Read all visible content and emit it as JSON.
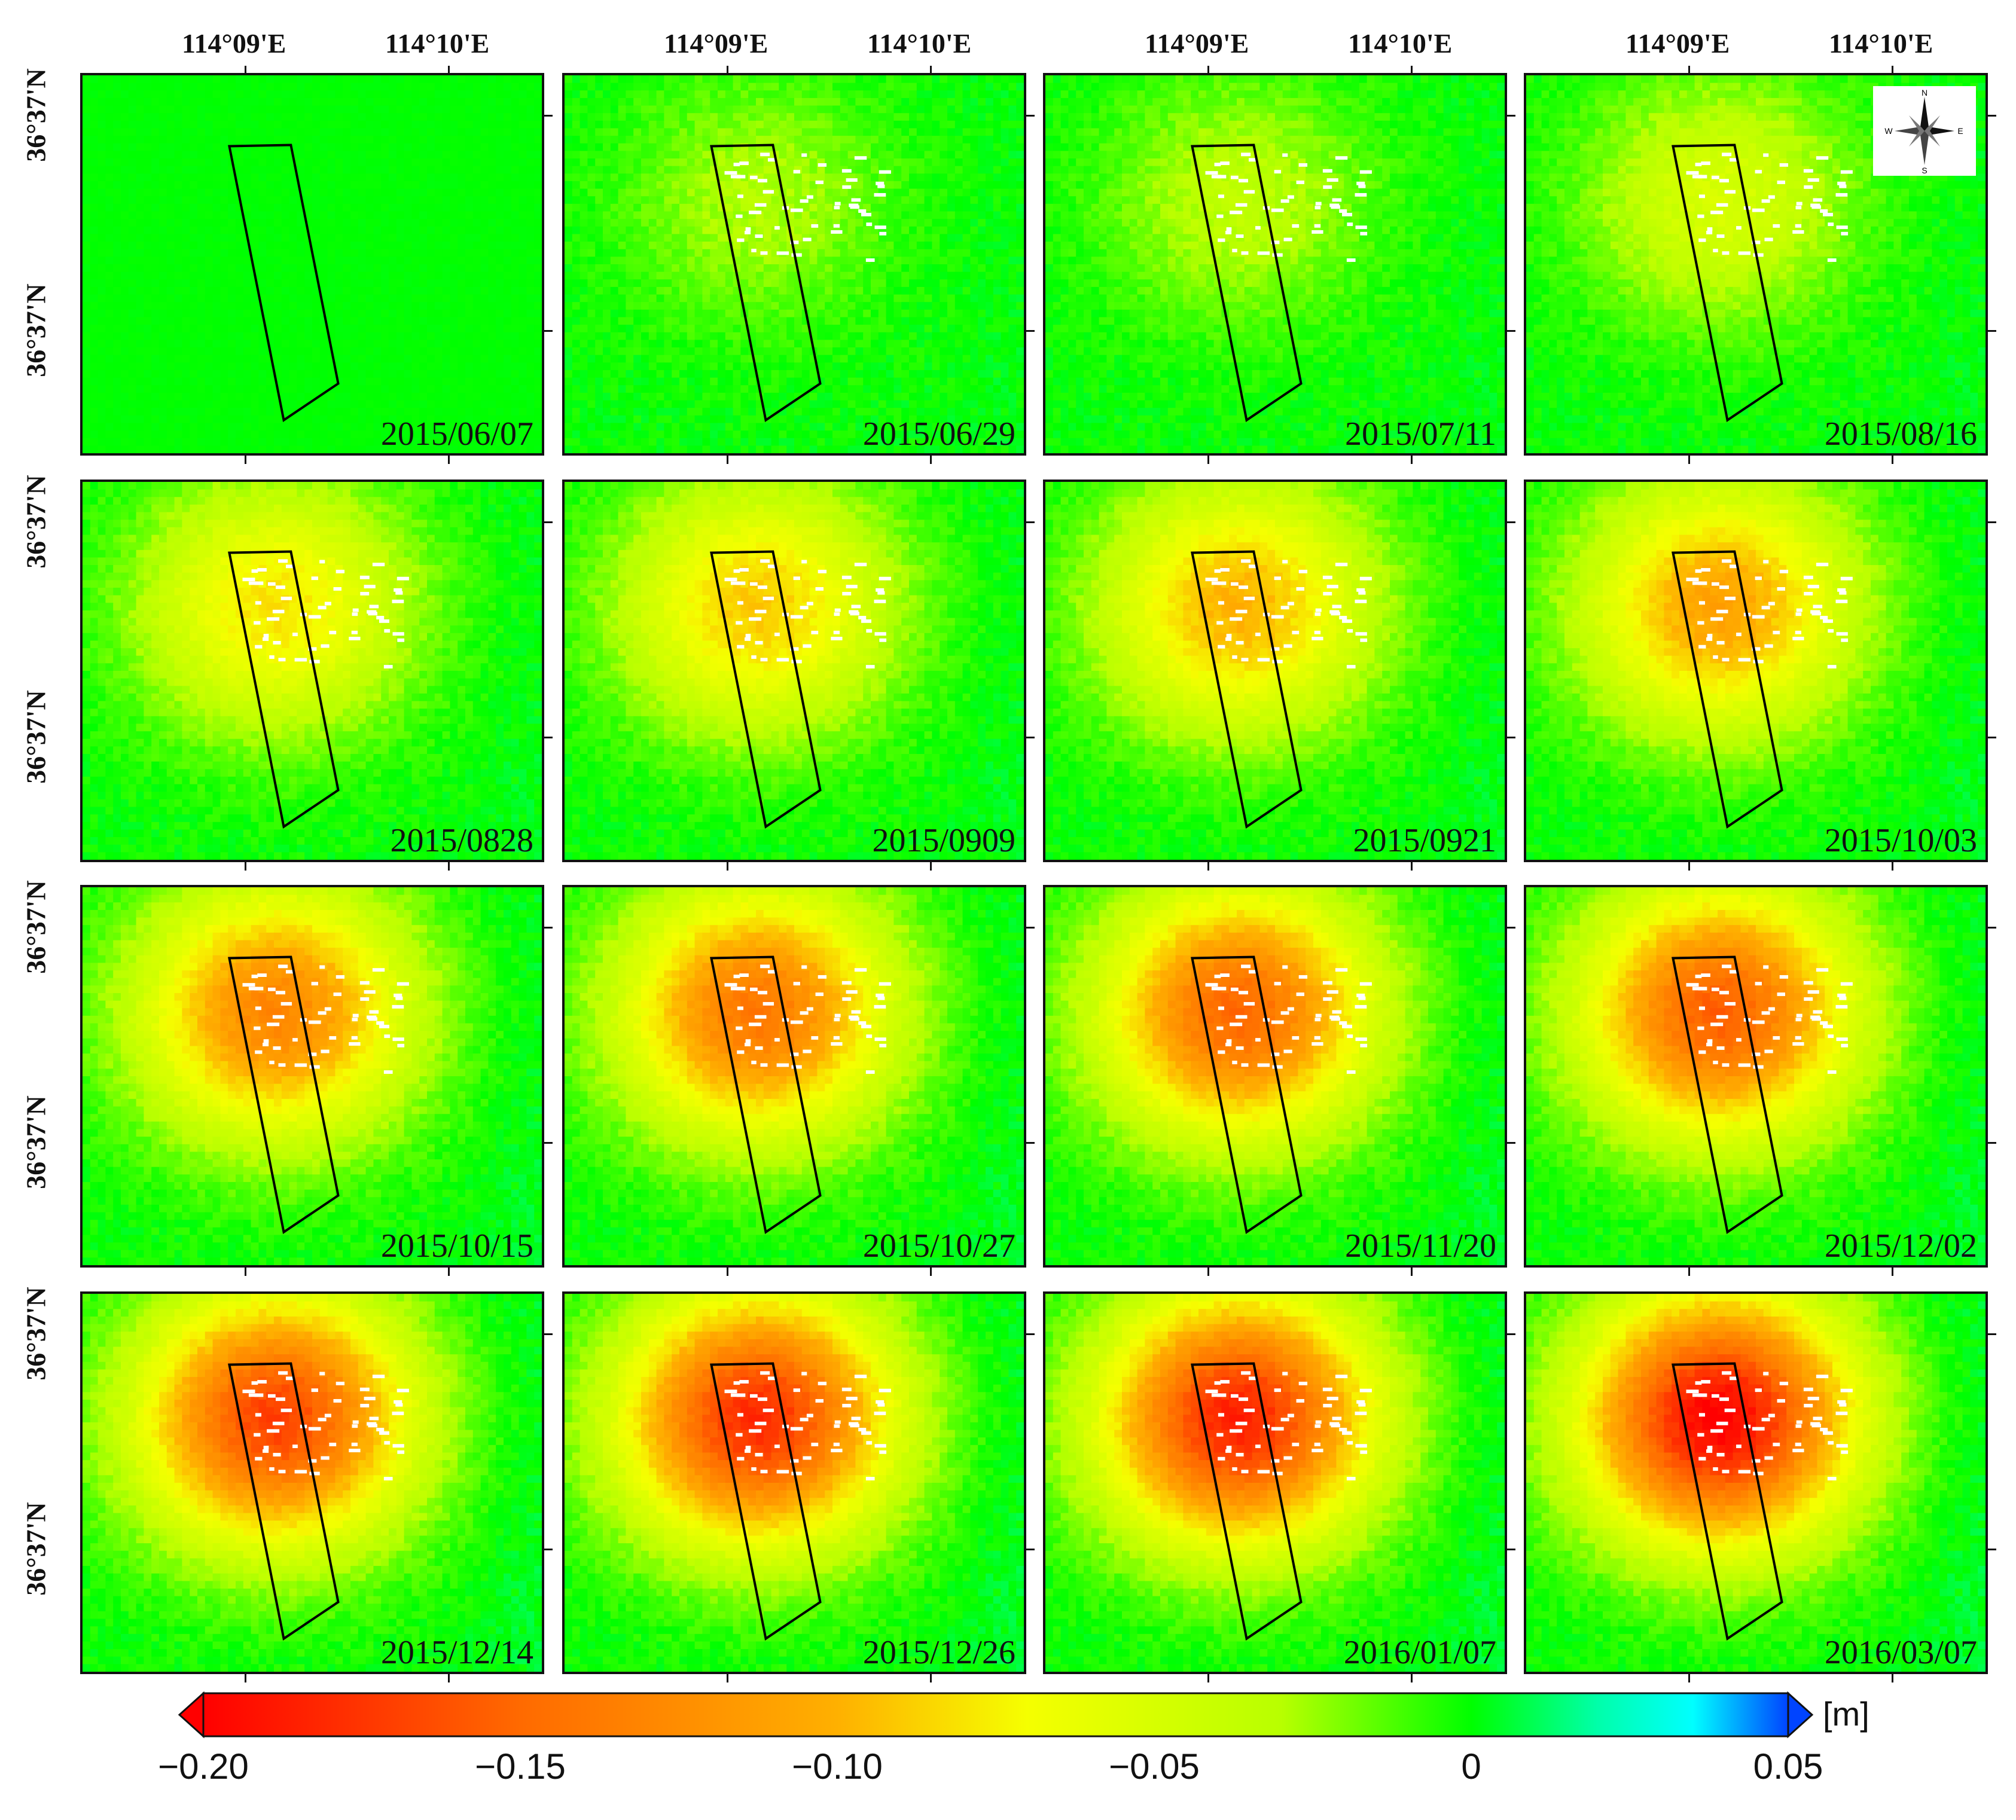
{
  "figure": {
    "lon_labels": [
      "114°09'E",
      "114°10'E"
    ],
    "lat_labels": [
      "36°37'N",
      "36°37'N"
    ],
    "panels": [
      {
        "date": "2015/06/07",
        "max_subsidence_m": 0.0
      },
      {
        "date": "2015/06/29",
        "max_subsidence_m": -0.03
      },
      {
        "date": "2015/07/11",
        "max_subsidence_m": -0.035
      },
      {
        "date": "2015/08/16",
        "max_subsidence_m": -0.05
      },
      {
        "date": "2015/0828",
        "max_subsidence_m": -0.08
      },
      {
        "date": "2015/0909",
        "max_subsidence_m": -0.09
      },
      {
        "date": "2015/0921",
        "max_subsidence_m": -0.1
      },
      {
        "date": "2015/10/03",
        "max_subsidence_m": -0.11
      },
      {
        "date": "2015/10/15",
        "max_subsidence_m": -0.13
      },
      {
        "date": "2015/10/27",
        "max_subsidence_m": -0.14
      },
      {
        "date": "2015/11/20",
        "max_subsidence_m": -0.15
      },
      {
        "date": "2015/12/02",
        "max_subsidence_m": -0.155
      },
      {
        "date": "2015/12/14",
        "max_subsidence_m": -0.17
      },
      {
        "date": "2015/12/26",
        "max_subsidence_m": -0.18
      },
      {
        "date": "2016/01/07",
        "max_subsidence_m": -0.185
      },
      {
        "date": "2016/03/07",
        "max_subsidence_m": -0.2
      }
    ],
    "compass": {
      "icon": "compass-rose-icon",
      "n": "N",
      "s": "S",
      "e": "E",
      "w": "W"
    },
    "colorbar": {
      "min": -0.2,
      "max": 0.05,
      "ticks": [
        "−0.20",
        "−0.15",
        "−0.10",
        "−0.05",
        "0",
        "0.05"
      ],
      "tick_values": [
        -0.2,
        -0.15,
        -0.1,
        -0.05,
        0,
        0.05
      ],
      "unit": "[m]",
      "stops": [
        {
          "v": -0.2,
          "color": "#ff0000"
        },
        {
          "v": -0.15,
          "color": "#ff6a00"
        },
        {
          "v": -0.1,
          "color": "#ffb000"
        },
        {
          "v": -0.07,
          "color": "#f5ff00"
        },
        {
          "v": -0.03,
          "color": "#b8ff00"
        },
        {
          "v": 0.0,
          "color": "#00ff00"
        },
        {
          "v": 0.02,
          "color": "#00ffaa"
        },
        {
          "v": 0.035,
          "color": "#00ffff"
        },
        {
          "v": 0.05,
          "color": "#0044ff"
        }
      ]
    }
  }
}
